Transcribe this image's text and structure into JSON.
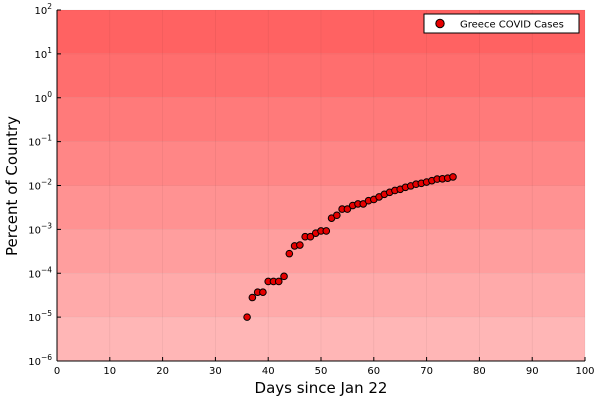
{
  "chart_data": {
    "type": "scatter",
    "xlabel": "Days since Jan 22",
    "ylabel": "Percent of Country",
    "xlim": [
      0,
      100
    ],
    "ylim": [
      1e-06,
      100
    ],
    "yscale": "log",
    "x_ticks": [
      0,
      10,
      20,
      30,
      40,
      50,
      60,
      70,
      80,
      90,
      100
    ],
    "y_ticks": [
      {
        "value": 1e-06,
        "base": "10",
        "exp": "−6"
      },
      {
        "value": 1e-05,
        "base": "10",
        "exp": "−5"
      },
      {
        "value": 0.0001,
        "base": "10",
        "exp": "−4"
      },
      {
        "value": 0.001,
        "base": "10",
        "exp": "−3"
      },
      {
        "value": 0.01,
        "base": "10",
        "exp": "−2"
      },
      {
        "value": 0.1,
        "base": "10",
        "exp": "−1"
      },
      {
        "value": 1,
        "base": "10",
        "exp": "0"
      },
      {
        "value": 10,
        "base": "10",
        "exp": "1"
      },
      {
        "value": 100,
        "base": "10",
        "exp": "2"
      }
    ],
    "grid": true,
    "background": "red gradient bands per decade, darker toward top",
    "legend_position": "top-right",
    "series": [
      {
        "name": "Greece COVID Cases",
        "color": "#e60000",
        "points": [
          [
            36,
            1e-05
          ],
          [
            37,
            2.8e-05
          ],
          [
            38,
            3.7e-05
          ],
          [
            39,
            3.7e-05
          ],
          [
            40,
            6.5e-05
          ],
          [
            41,
            6.5e-05
          ],
          [
            42,
            6.5e-05
          ],
          [
            43,
            8.5e-05
          ],
          [
            44,
            0.00028
          ],
          [
            45,
            0.00042
          ],
          [
            46,
            0.00044
          ],
          [
            47,
            0.00068
          ],
          [
            48,
            0.00068
          ],
          [
            49,
            0.00082
          ],
          [
            50,
            0.00092
          ],
          [
            51,
            0.00092
          ],
          [
            52,
            0.0018
          ],
          [
            53,
            0.0021
          ],
          [
            54,
            0.0029
          ],
          [
            55,
            0.0029
          ],
          [
            56,
            0.0035
          ],
          [
            57,
            0.0038
          ],
          [
            58,
            0.0038
          ],
          [
            59,
            0.0045
          ],
          [
            60,
            0.0048
          ],
          [
            61,
            0.0055
          ],
          [
            62,
            0.0063
          ],
          [
            63,
            0.007
          ],
          [
            64,
            0.0077
          ],
          [
            65,
            0.0082
          ],
          [
            66,
            0.0091
          ],
          [
            67,
            0.0098
          ],
          [
            68,
            0.0107
          ],
          [
            69,
            0.0112
          ],
          [
            70,
            0.012
          ],
          [
            71,
            0.0129
          ],
          [
            72,
            0.014
          ],
          [
            73,
            0.0142
          ],
          [
            74,
            0.0147
          ],
          [
            75,
            0.0157
          ]
        ]
      }
    ]
  }
}
